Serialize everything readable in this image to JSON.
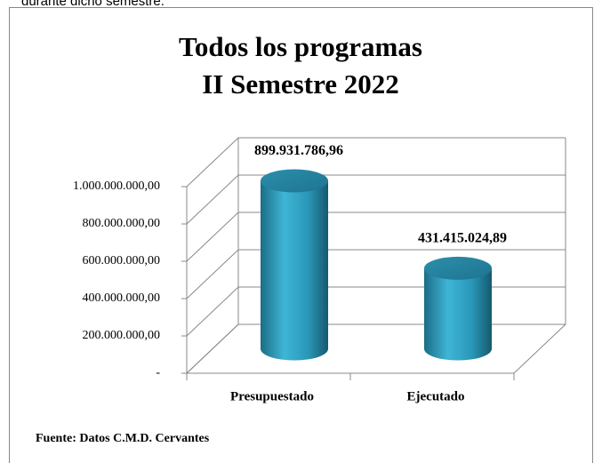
{
  "header_text": "durante dicho semestre.",
  "chart_data": {
    "type": "bar3d",
    "title": [
      "Todos los programas",
      "II Semestre 2022"
    ],
    "categories": [
      "Presupuestado",
      "Ejecutado"
    ],
    "values": [
      899931786.96,
      431415024.89
    ],
    "value_labels": [
      "899.931.786,96",
      "431.415.024,89"
    ],
    "color": "#2e9bbb",
    "ylim": [
      0,
      1000000000
    ],
    "yticks": [
      {
        "value": 0,
        "label": "-"
      },
      {
        "value": 200000000,
        "label": "200.000.000,00"
      },
      {
        "value": 400000000,
        "label": "400.000.000,00"
      },
      {
        "value": 600000000,
        "label": "600.000.000,00"
      },
      {
        "value": 800000000,
        "label": "800.000.000,00"
      },
      {
        "value": 1000000000,
        "label": "1.000.000.000,00"
      }
    ],
    "grid": true,
    "source": "Fuente: Datos C.M.D. Cervantes"
  }
}
